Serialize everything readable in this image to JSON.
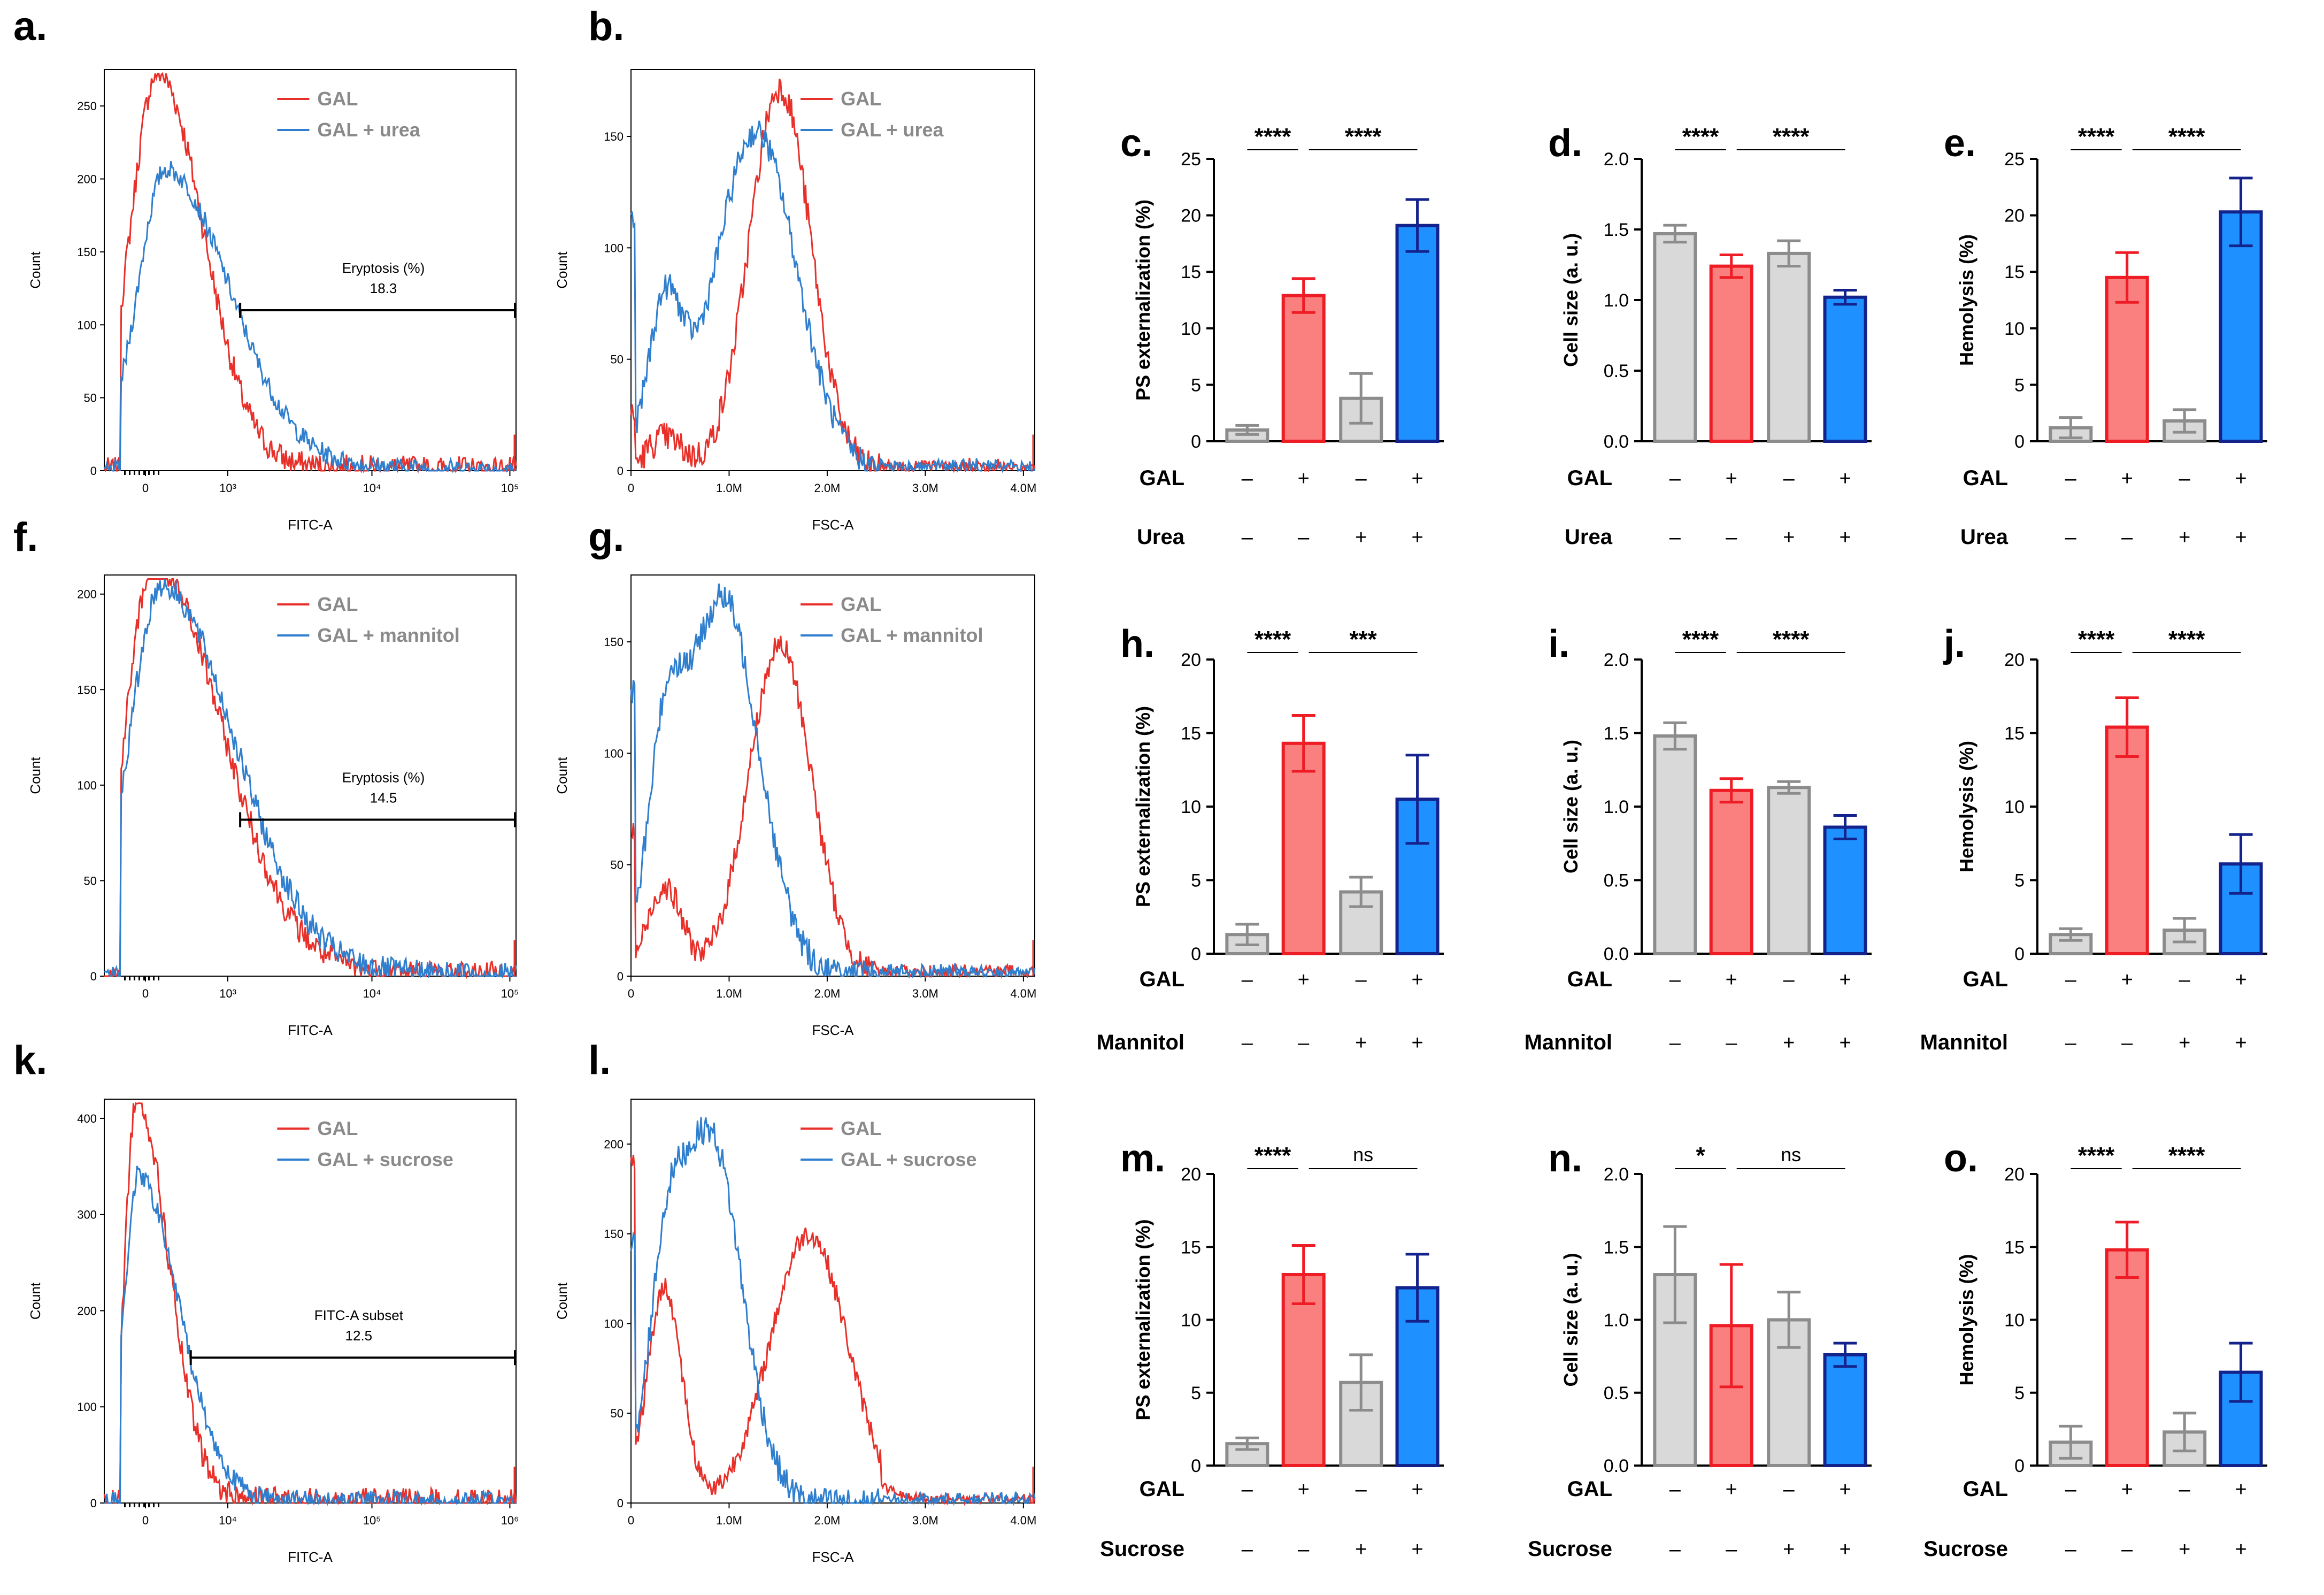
{
  "figure": {
    "colors": {
      "gal_line": "#e8302a",
      "treat_line": "#2f7fce",
      "ctrl_fill": "#d9d9d9",
      "ctrl_edge": "#8c8c8c",
      "gal_fill": "#fa8080",
      "gal_edge": "#ee1c24",
      "treat_fill": "#1e90ff",
      "treat_edge": "#14238c",
      "text_dark": "#000000",
      "legend_gray": "#8a8a8a"
    }
  },
  "chart_data": [
    {
      "panel": "a.",
      "type": "line",
      "kind": "fitc",
      "xlabel": "FITC-A",
      "ylabel": "Count",
      "ylim": [
        0,
        275
      ],
      "yticks": [
        "0",
        "50",
        "100",
        "150",
        "200",
        "250"
      ],
      "xticks": [
        "0",
        "10³",
        "10⁴",
        "10⁵"
      ],
      "legend": [
        "GAL",
        "GAL + urea"
      ],
      "gate": {
        "label": "Eryptosis (%)",
        "value": "18.3"
      },
      "series": [
        {
          "name": "GAL",
          "peak_x": 0.4,
          "peak_y": 265,
          "width_left": 0.12,
          "width_right": 0.2,
          "tail": 8
        },
        {
          "name": "GAL + urea",
          "peak_x": 0.5,
          "peak_y": 195,
          "width_left": 0.12,
          "width_right": 0.28,
          "tail": 12
        }
      ]
    },
    {
      "panel": "b.",
      "type": "line",
      "kind": "fsc",
      "xlabel": "FSC-A",
      "ylabel": "Count",
      "ylim": [
        0,
        180
      ],
      "yticks": [
        "0",
        "50",
        "100",
        "150"
      ],
      "xticks": [
        "0",
        "1.0M",
        "2.0M",
        "3.0M",
        "4.0M"
      ],
      "legend": [
        "GAL",
        "GAL + urea"
      ],
      "series": [
        {
          "name": "GAL",
          "peak_x": 1.55,
          "peak_y": 172,
          "sigma": 0.32,
          "low_bump": 15
        },
        {
          "name": "GAL + urea",
          "peak_x": 1.3,
          "peak_y": 152,
          "sigma": 0.42,
          "low_bump": 70
        }
      ]
    },
    {
      "panel": "c.",
      "type": "bar",
      "ylabel": "PS externalization (%)",
      "ylim": [
        0,
        25
      ],
      "yticks": [
        "0",
        "5",
        "10",
        "15",
        "20",
        "25"
      ],
      "values": [
        1.0,
        12.9,
        3.8,
        19.1
      ],
      "errors": [
        0.4,
        1.5,
        2.2,
        2.3
      ],
      "sig": [
        "****",
        "****"
      ],
      "row1_label": "GAL",
      "row1": [
        "–",
        "+",
        "–",
        "+"
      ],
      "row2_label": "Urea",
      "row2": [
        "–",
        "–",
        "+",
        "+"
      ]
    },
    {
      "panel": "d.",
      "type": "bar",
      "ylabel": "Cell size (a. u.)",
      "ylim": [
        0,
        2.0
      ],
      "yticks": [
        "0.0",
        "0.5",
        "1.0",
        "1.5",
        "2.0"
      ],
      "values": [
        1.47,
        1.24,
        1.33,
        1.02
      ],
      "errors": [
        0.06,
        0.08,
        0.09,
        0.05
      ],
      "sig": [
        "****",
        "****"
      ],
      "row1_label": "GAL",
      "row1": [
        "–",
        "+",
        "–",
        "+"
      ],
      "row2_label": "Urea",
      "row2": [
        "–",
        "–",
        "+",
        "+"
      ]
    },
    {
      "panel": "e.",
      "type": "bar",
      "ylabel": "Hemolysis (%)",
      "ylim": [
        0,
        25
      ],
      "yticks": [
        "0",
        "5",
        "10",
        "15",
        "20",
        "25"
      ],
      "values": [
        1.2,
        14.5,
        1.8,
        20.3
      ],
      "errors": [
        0.9,
        2.2,
        1.0,
        3.0
      ],
      "sig": [
        "****",
        "****"
      ],
      "row1_label": "GAL",
      "row1": [
        "–",
        "+",
        "–",
        "+"
      ],
      "row2_label": "Urea",
      "row2": [
        "–",
        "–",
        "+",
        "+"
      ]
    },
    {
      "panel": "f.",
      "type": "line",
      "kind": "fitc",
      "xlabel": "FITC-A",
      "ylabel": "Count",
      "ylim": [
        0,
        210
      ],
      "yticks": [
        "0",
        "50",
        "100",
        "150",
        "200"
      ],
      "xticks": [
        "0",
        "10³",
        "10⁴",
        "10⁵"
      ],
      "legend": [
        "GAL",
        "GAL + mannitol"
      ],
      "gate": {
        "label": "Eryptosis (%)",
        "value": "14.5"
      },
      "series": [
        {
          "name": "GAL",
          "peak_x": 0.35,
          "peak_y": 205,
          "width_left": 0.12,
          "width_right": 0.3,
          "tail": 12
        },
        {
          "name": "GAL + mannitol",
          "peak_x": 0.45,
          "peak_y": 195,
          "width_left": 0.14,
          "width_right": 0.32,
          "tail": 10
        }
      ]
    },
    {
      "panel": "g.",
      "type": "line",
      "kind": "fsc",
      "xlabel": "FSC-A",
      "ylabel": "Count",
      "ylim": [
        0,
        180
      ],
      "yticks": [
        "0",
        "50",
        "100",
        "150"
      ],
      "xticks": [
        "0",
        "1.0M",
        "2.0M",
        "3.0M",
        "4.0M"
      ],
      "legend": [
        "GAL",
        "GAL + mannitol"
      ],
      "series": [
        {
          "name": "GAL",
          "peak_x": 1.55,
          "peak_y": 148,
          "sigma": 0.33,
          "low_bump": 40
        },
        {
          "name": "GAL + mannitol",
          "peak_x": 0.95,
          "peak_y": 170,
          "sigma": 0.38,
          "low_bump": 80
        }
      ]
    },
    {
      "panel": "h.",
      "type": "bar",
      "ylabel": "PS externalization (%)",
      "ylim": [
        0,
        20
      ],
      "yticks": [
        "0",
        "5",
        "10",
        "15",
        "20"
      ],
      "values": [
        1.3,
        14.3,
        4.2,
        10.5
      ],
      "errors": [
        0.7,
        1.9,
        1.0,
        3.0
      ],
      "sig": [
        "****",
        "***"
      ],
      "row1_label": "GAL",
      "row1": [
        "–",
        "+",
        "–",
        "+"
      ],
      "row2_label": "Mannitol",
      "row2": [
        "–",
        "–",
        "+",
        "+"
      ]
    },
    {
      "panel": "i.",
      "type": "bar",
      "ylabel": "Cell size (a. u.)",
      "ylim": [
        0,
        2.0
      ],
      "yticks": [
        "0.0",
        "0.5",
        "1.0",
        "1.5",
        "2.0"
      ],
      "values": [
        1.48,
        1.11,
        1.13,
        0.86
      ],
      "errors": [
        0.09,
        0.08,
        0.04,
        0.08
      ],
      "sig": [
        "****",
        "****"
      ],
      "row1_label": "GAL",
      "row1": [
        "–",
        "+",
        "–",
        "+"
      ],
      "row2_label": "Mannitol",
      "row2": [
        "–",
        "–",
        "+",
        "+"
      ]
    },
    {
      "panel": "j.",
      "type": "bar",
      "ylabel": "Hemolysis (%)",
      "ylim": [
        0,
        20
      ],
      "yticks": [
        "0",
        "5",
        "10",
        "15",
        "20"
      ],
      "values": [
        1.3,
        15.4,
        1.6,
        6.1
      ],
      "errors": [
        0.4,
        2.0,
        0.8,
        2.0
      ],
      "sig": [
        "****",
        "****"
      ],
      "row1_label": "GAL",
      "row1": [
        "–",
        "+",
        "–",
        "+"
      ],
      "row2_label": "Mannitol",
      "row2": [
        "–",
        "–",
        "+",
        "+"
      ]
    },
    {
      "panel": "k.",
      "type": "line",
      "kind": "fitc",
      "xlabel": "FITC-A",
      "ylabel": "Count",
      "ylim": [
        0,
        420
      ],
      "yticks": [
        "0",
        "100",
        "200",
        "300",
        "400"
      ],
      "xticks": [
        "0",
        "10⁴",
        "10⁵",
        "10⁶"
      ],
      "legend": [
        "GAL",
        "GAL + sucrose"
      ],
      "gate": {
        "label": "FITC-A subset",
        "value": "12.5"
      },
      "series": [
        {
          "name": "GAL",
          "peak_x": 0.14,
          "peak_y": 415,
          "width_left": 0.05,
          "width_right": 0.14,
          "tail": 8
        },
        {
          "name": "GAL + sucrose",
          "peak_x": 0.16,
          "peak_y": 330,
          "width_left": 0.06,
          "width_right": 0.18,
          "tail": 10
        }
      ]
    },
    {
      "panel": "l.",
      "type": "line",
      "kind": "fsc",
      "xlabel": "FSC-A",
      "ylabel": "Count",
      "ylim": [
        0,
        225
      ],
      "yticks": [
        "0",
        "50",
        "100",
        "150",
        "200"
      ],
      "xticks": [
        "0",
        "1.0M",
        "2.0M",
        "3.0M",
        "4.0M"
      ],
      "legend": [
        "GAL",
        "GAL + sucrose"
      ],
      "series": [
        {
          "name": "GAL",
          "peak_x": 1.85,
          "peak_y": 150,
          "sigma": 0.4,
          "low_bump": 120
        },
        {
          "name": "GAL + sucrose",
          "peak_x": 0.82,
          "peak_y": 205,
          "sigma": 0.33,
          "low_bump": 90
        }
      ]
    },
    {
      "panel": "m.",
      "type": "bar",
      "ylabel": "PS externalization (%)",
      "ylim": [
        0,
        20
      ],
      "yticks": [
        "0",
        "5",
        "10",
        "15",
        "20"
      ],
      "values": [
        1.5,
        13.1,
        5.7,
        12.2
      ],
      "errors": [
        0.4,
        2.0,
        1.9,
        2.3
      ],
      "sig": [
        "****",
        "ns"
      ],
      "row1_label": "GAL",
      "row1": [
        "–",
        "+",
        "–",
        "+"
      ],
      "row2_label": "Sucrose",
      "row2": [
        "–",
        "–",
        "+",
        "+"
      ]
    },
    {
      "panel": "n.",
      "type": "bar",
      "ylabel": "Cell size (a. u.)",
      "ylim": [
        0,
        2.0
      ],
      "yticks": [
        "0.0",
        "0.5",
        "1.0",
        "1.5",
        "2.0"
      ],
      "values": [
        1.31,
        0.96,
        1.0,
        0.76
      ],
      "errors": [
        0.33,
        0.42,
        0.19,
        0.08
      ],
      "sig": [
        "*",
        "ns"
      ],
      "row1_label": "GAL",
      "row1": [
        "–",
        "+",
        "–",
        "+"
      ],
      "row2_label": "Sucrose",
      "row2": [
        "–",
        "–",
        "+",
        "+"
      ]
    },
    {
      "panel": "o.",
      "type": "bar",
      "ylabel": "Hemolysis (%)",
      "ylim": [
        0,
        20
      ],
      "yticks": [
        "0",
        "5",
        "10",
        "15",
        "20"
      ],
      "values": [
        1.6,
        14.8,
        2.3,
        6.4
      ],
      "errors": [
        1.1,
        1.9,
        1.3,
        2.0
      ],
      "sig": [
        "****",
        "****"
      ],
      "row1_label": "GAL",
      "row1": [
        "–",
        "+",
        "–",
        "+"
      ],
      "row2_label": "Sucrose",
      "row2": [
        "–",
        "–",
        "+",
        "+"
      ]
    }
  ]
}
